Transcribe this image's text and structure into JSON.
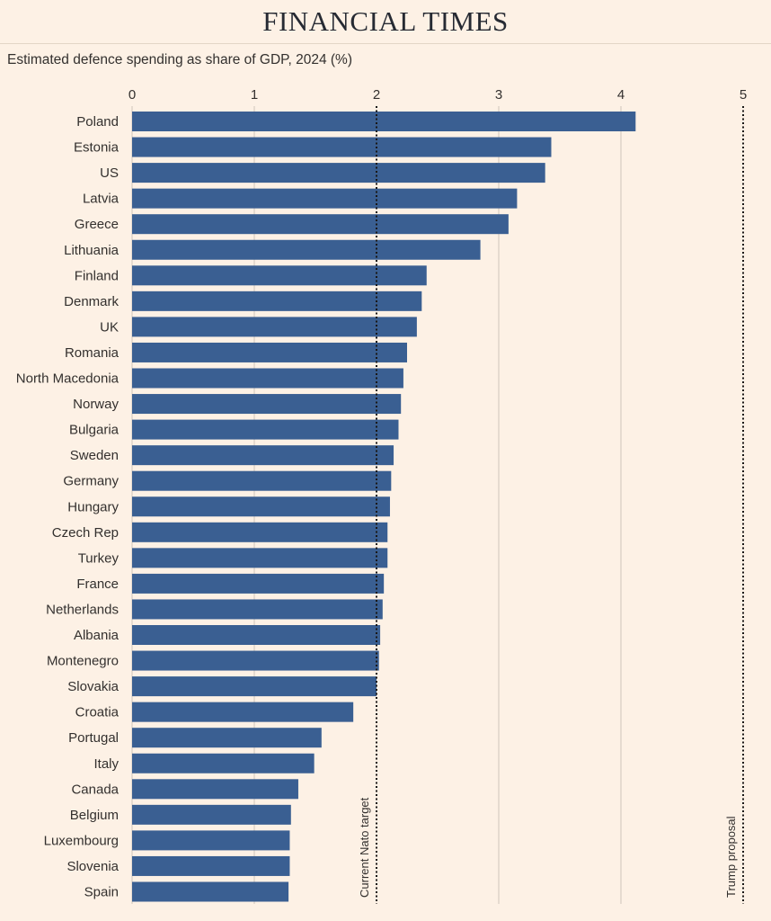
{
  "masthead": "FINANCIAL TIMES",
  "chart_data": {
    "type": "bar",
    "orientation": "horizontal",
    "title": "Estimated defence spending as share of GDP, 2024 (%)",
    "categories": [
      "Poland",
      "Estonia",
      "US",
      "Latvia",
      "Greece",
      "Lithuania",
      "Finland",
      "Denmark",
      "UK",
      "Romania",
      "North Macedonia",
      "Norway",
      "Bulgaria",
      "Sweden",
      "Germany",
      "Hungary",
      "Czech Rep",
      "Turkey",
      "France",
      "Netherlands",
      "Albania",
      "Montenegro",
      "Slovakia",
      "Croatia",
      "Portugal",
      "Italy",
      "Canada",
      "Belgium",
      "Luxembourg",
      "Slovenia",
      "Spain"
    ],
    "values": [
      4.12,
      3.43,
      3.38,
      3.15,
      3.08,
      2.85,
      2.41,
      2.37,
      2.33,
      2.25,
      2.22,
      2.2,
      2.18,
      2.14,
      2.12,
      2.11,
      2.09,
      2.09,
      2.06,
      2.05,
      2.03,
      2.02,
      2.0,
      1.81,
      1.55,
      1.49,
      1.36,
      1.3,
      1.29,
      1.29,
      1.28
    ],
    "xticks": [
      "0",
      "1",
      "2",
      "3",
      "4",
      "5"
    ],
    "xlim": [
      0,
      5
    ],
    "bar_color": "#3a5f92",
    "reference_lines": [
      {
        "value": 2,
        "label": "Current Nato target"
      },
      {
        "value": 5,
        "label": "Trump proposal"
      }
    ]
  }
}
